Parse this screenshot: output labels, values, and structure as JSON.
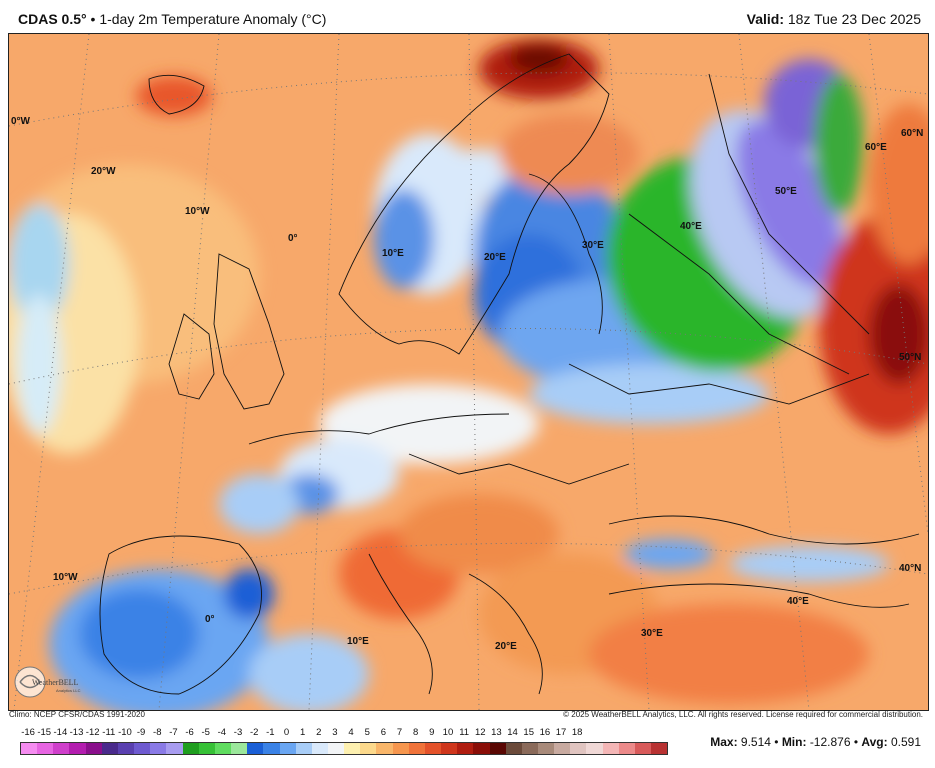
{
  "header": {
    "model": "CDAS 0.5°",
    "separator": " • ",
    "product": "1-day 2m Temperature Anomaly (°C)",
    "valid_label": "Valid:",
    "valid_time": "18z Tue 23 Dec 2025"
  },
  "map": {
    "longitude_labels": [
      "0°W",
      "20°W",
      "10°W",
      "0°",
      "10°E",
      "20°E",
      "30°E",
      "40°E",
      "50°E",
      "60°E",
      "60°N",
      "50°N",
      "10°W",
      "0°",
      "10°E",
      "20°E",
      "30°E",
      "40°E",
      "40°N"
    ],
    "logo_text": "WeatherBELL",
    "logo_sub": "Analytics LLC"
  },
  "footer": {
    "climo": "Climo: NCEP CFSR/CDAS 1991-2020",
    "copyright": "© 2025 WeatherBELL Analytics, LLC. All rights reserved. License required for commercial distribution."
  },
  "colorbar": {
    "ticks": [
      "-16",
      "-15",
      "-14",
      "-13",
      "-12",
      "-11",
      "-10",
      "-9",
      "-8",
      "-7",
      "-6",
      "-5",
      "-4",
      "-3",
      "-2",
      "-1",
      "0",
      "1",
      "2",
      "3",
      "4",
      "5",
      "6",
      "7",
      "8",
      "9",
      "10",
      "11",
      "12",
      "13",
      "14",
      "15",
      "16",
      "17",
      "18"
    ],
    "colors": [
      "#f58cf0",
      "#e765e2",
      "#cf3fcb",
      "#b31daf",
      "#8a0f8c",
      "#4a2a8c",
      "#5a40b0",
      "#6e5ad0",
      "#8a7ae6",
      "#a89cf0",
      "#1f9e1f",
      "#36c136",
      "#5fdc5f",
      "#9be79b",
      "#1a5fd6",
      "#3a82e6",
      "#6aa6f2",
      "#a8cdf7",
      "#d9e9fb",
      "#f2f4f6",
      "#fdf0b0",
      "#fcd98c",
      "#f9b66a",
      "#f6964e",
      "#f0733a",
      "#e4522a",
      "#cf361c",
      "#b01d10",
      "#8a0e08",
      "#5a0703",
      "#6b4a3a",
      "#8a6a5a",
      "#a88a7a",
      "#c8aaa0",
      "#e0c4c0",
      "#f0d8d6",
      "#f4b6b6",
      "#ec8a8a",
      "#d85a5a",
      "#b83232"
    ]
  },
  "stats": {
    "max_label": "Max:",
    "max": "9.514",
    "min_label": "Min:",
    "min": "-12.876",
    "avg_label": "Avg:",
    "avg": "0.591",
    "sep": " • "
  }
}
